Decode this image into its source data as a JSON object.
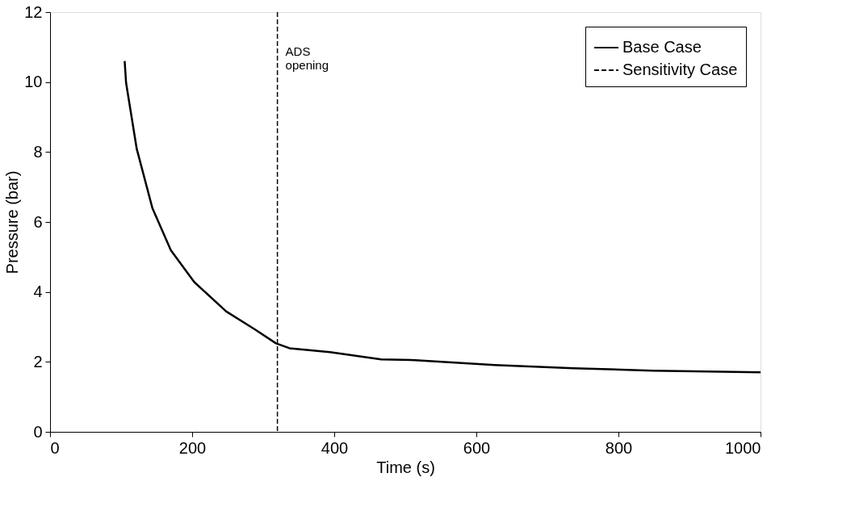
{
  "chart_data": {
    "type": "line",
    "xlabel": "Time (s)",
    "ylabel": "Pressure (bar)",
    "xlim": [
      0,
      1000
    ],
    "ylim": [
      0,
      12
    ],
    "xticks": [
      0,
      200,
      400,
      600,
      800,
      1000
    ],
    "yticks": [
      0,
      2,
      4,
      6,
      8,
      10,
      12
    ],
    "grid": false,
    "legend": "top right",
    "marker": "none",
    "x": [
      105,
      107,
      122,
      144,
      170,
      203,
      248,
      289,
      318,
      337,
      394,
      466,
      514,
      626,
      737,
      848,
      1000
    ],
    "series": [
      {
        "name": "Base Case",
        "color": "#000000",
        "line_style": "solid",
        "values": [
          10.6,
          9.98,
          8.09,
          6.4,
          5.19,
          4.28,
          3.44,
          2.92,
          2.53,
          2.39,
          2.28,
          2.07,
          2.05,
          1.91,
          1.82,
          1.75,
          1.7
        ]
      },
      {
        "name": "Sensitivity Case",
        "color": "#000000",
        "line_style": "dashed",
        "values": [
          null,
          null,
          null,
          null,
          null,
          null,
          null,
          null,
          null,
          null,
          null,
          null,
          null,
          null,
          null,
          null,
          null
        ]
      }
    ],
    "ref_lines": [
      {
        "axis": "x",
        "value": 320,
        "label": "ADS opening",
        "line_style": "dashed",
        "color": "#000000"
      }
    ]
  }
}
